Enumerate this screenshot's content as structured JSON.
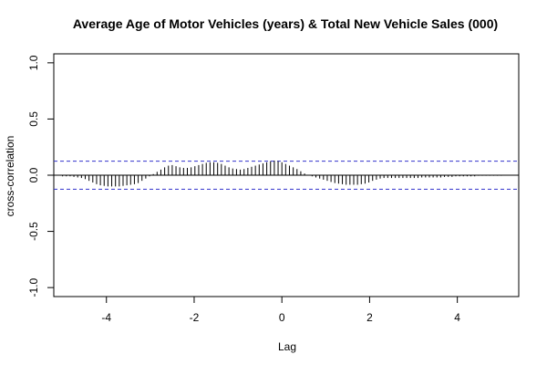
{
  "chart_data": {
    "type": "bar",
    "title": "Average Age of Motor Vehicles (years) & Total New Vehicle Sales (000)",
    "xlabel": "Lag",
    "ylabel": "cross-correlation",
    "xlim": [
      -5.2,
      5.4
    ],
    "ylim": [
      -1.08,
      1.08
    ],
    "x_ticks": [
      -4,
      -2,
      0,
      2,
      4
    ],
    "x_tick_labels": [
      "-4",
      "-2",
      "0",
      "2",
      "4"
    ],
    "y_ticks": [
      -1.0,
      -0.5,
      0.0,
      0.5,
      1.0
    ],
    "y_tick_labels": [
      "-1.0",
      "-0.5",
      "0.0",
      "0.5",
      "1.0"
    ],
    "confidence_band": 0.125,
    "confidence_color": "#3333cc",
    "grid": false,
    "lag_step": 0.0833,
    "lags_min": -5.0,
    "lags_max": 5.0,
    "values": [
      -0.01,
      -0.01,
      -0.01,
      -0.015,
      -0.02,
      -0.025,
      -0.035,
      -0.05,
      -0.065,
      -0.08,
      -0.09,
      -0.095,
      -0.1,
      -0.1,
      -0.1,
      -0.1,
      -0.095,
      -0.09,
      -0.085,
      -0.08,
      -0.07,
      -0.05,
      -0.03,
      -0.01,
      0.01,
      0.03,
      0.05,
      0.07,
      0.085,
      0.09,
      0.08,
      0.07,
      0.065,
      0.065,
      0.07,
      0.08,
      0.09,
      0.1,
      0.11,
      0.115,
      0.115,
      0.11,
      0.1,
      0.085,
      0.07,
      0.06,
      0.055,
      0.05,
      0.055,
      0.065,
      0.075,
      0.085,
      0.095,
      0.105,
      0.115,
      0.125,
      0.13,
      0.125,
      0.115,
      0.1,
      0.085,
      0.07,
      0.055,
      0.035,
      0.015,
      0.0,
      -0.01,
      -0.02,
      -0.03,
      -0.04,
      -0.05,
      -0.06,
      -0.07,
      -0.075,
      -0.08,
      -0.085,
      -0.085,
      -0.085,
      -0.085,
      -0.08,
      -0.075,
      -0.065,
      -0.05,
      -0.04,
      -0.03,
      -0.025,
      -0.025,
      -0.025,
      -0.025,
      -0.025,
      -0.025,
      -0.025,
      -0.025,
      -0.025,
      -0.025,
      -0.02,
      -0.02,
      -0.02,
      -0.02,
      -0.02,
      -0.02,
      -0.015,
      -0.015,
      -0.015,
      -0.01,
      -0.01,
      -0.01,
      -0.01,
      -0.01,
      -0.01,
      -0.005,
      -0.005,
      -0.005,
      -0.005,
      -0.005,
      -0.005,
      -0.005
    ]
  }
}
